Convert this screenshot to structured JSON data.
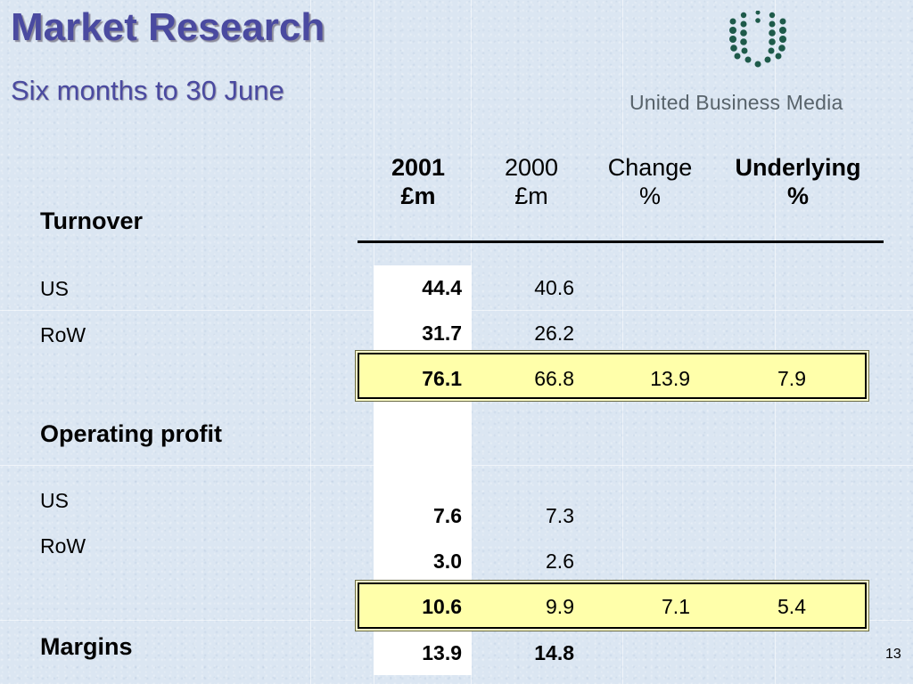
{
  "slide": {
    "title": "Market Research",
    "subtitle": "Six months to 30 June",
    "page_number": "13"
  },
  "logo": {
    "company": "United Business Media",
    "icon": "ubm-dots-logo-icon",
    "color": "#1e5a4a"
  },
  "columns": [
    {
      "line1": "2001",
      "line2": "£m",
      "bold": true
    },
    {
      "line1": "2000",
      "line2": "£m",
      "bold": false
    },
    {
      "line1": "Change",
      "line2": "%",
      "bold": false
    },
    {
      "line1": "Underlying",
      "line2": "%",
      "bold": true
    }
  ],
  "sections": {
    "turnover": {
      "label": "Turnover",
      "rows": [
        {
          "label": "US",
          "y2001": "44.4",
          "y2000": "40.6"
        },
        {
          "label": "RoW",
          "y2001": "31.7",
          "y2000": "26.2"
        }
      ],
      "total": {
        "y2001": "76.1",
        "y2000": "66.8",
        "change": "13.9",
        "underlying": "7.9"
      }
    },
    "operating_profit": {
      "label": "Operating profit",
      "rows": [
        {
          "label": "US",
          "y2001": "7.6",
          "y2000": "7.3"
        },
        {
          "label": "RoW",
          "y2001": "3.0",
          "y2000": "2.6"
        }
      ],
      "total": {
        "y2001": "10.6",
        "y2000": "9.9",
        "change": "7.1",
        "underlying": "5.4"
      }
    },
    "margins": {
      "label": "Margins",
      "y2001": "13.9",
      "y2000": "14.8"
    }
  },
  "colors": {
    "title": "#4a4aa0",
    "background": "#dbe6f2",
    "highlight": "#ffffaa"
  }
}
